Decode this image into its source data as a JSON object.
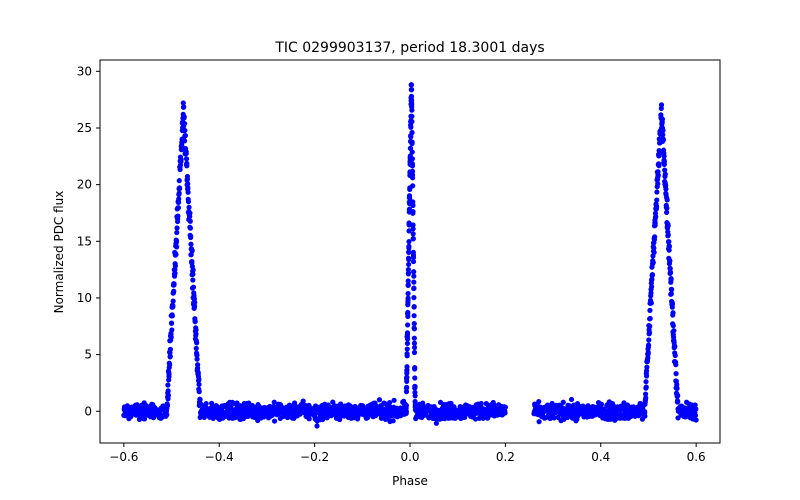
{
  "chart_data": {
    "type": "scatter",
    "title": "TIC 0299903137, period 18.3001 days",
    "xlabel": "Phase",
    "ylabel": "Normalized PDC flux",
    "xlim": [
      -0.65,
      0.65
    ],
    "ylim": [
      -2.8,
      31.0
    ],
    "x_ticks": [
      -0.6,
      -0.4,
      -0.2,
      0.0,
      0.2,
      0.4,
      0.6
    ],
    "x_tick_labels": [
      "−0.6",
      "−0.4",
      "−0.2",
      "0.0",
      "0.2",
      "0.4",
      "0.6"
    ],
    "y_ticks": [
      0,
      5,
      10,
      15,
      20,
      25,
      30
    ],
    "y_tick_labels": [
      "0",
      "5",
      "10",
      "15",
      "20",
      "25",
      "30"
    ],
    "grid": false,
    "marker_color": "#0000ff",
    "series": [
      {
        "name": "flux",
        "baseline_segments": [
          [
            -0.6,
            0.2
          ],
          [
            0.26,
            0.6
          ]
        ],
        "baseline_noise": 0.35,
        "peaks": [
          {
            "center": -0.475,
            "height": 26.5,
            "rise_start": -0.51,
            "fall_end": -0.44
          },
          {
            "center": 0.003,
            "height": 29.0,
            "rise_start": -0.008,
            "fall_end": 0.011
          },
          {
            "center": 0.527,
            "height": 26.5,
            "rise_start": 0.492,
            "fall_end": 0.562
          }
        ],
        "outliers": [
          {
            "x": -0.195,
            "y": -1.3
          }
        ]
      }
    ]
  }
}
